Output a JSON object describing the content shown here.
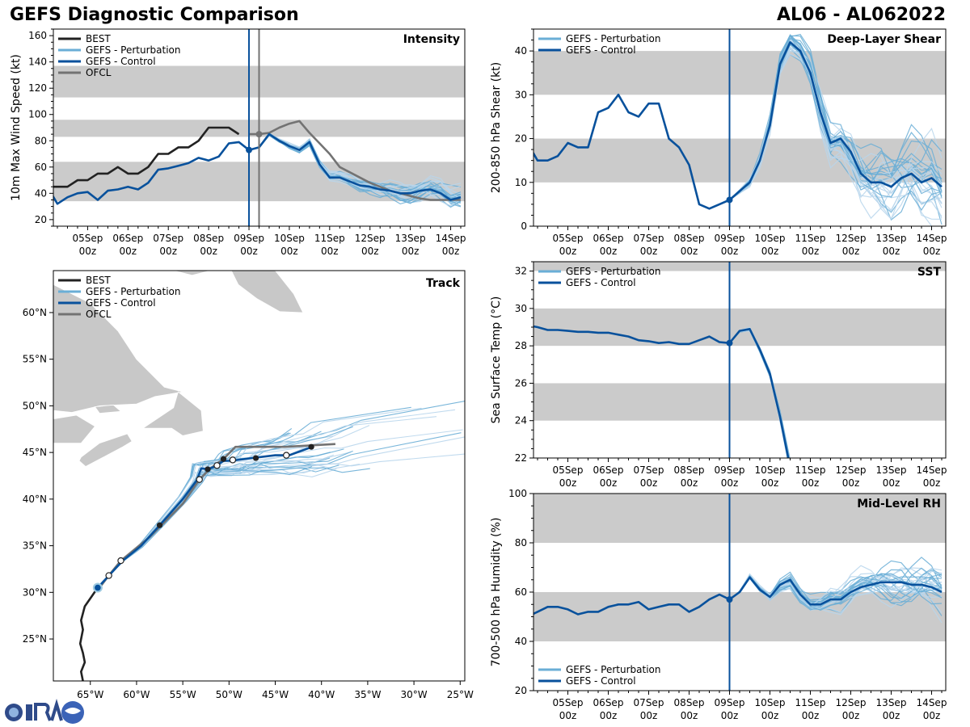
{
  "header": {
    "title": "GEFS Diagnostic Comparison",
    "storm_id": "AL06 - AL062022"
  },
  "colors": {
    "best": "#222222",
    "perturbation": "#6aaed6",
    "perturbation_light": "#b9d6ec",
    "control": "#08519c",
    "ofcl": "#737373",
    "band": "#cbcbcb",
    "land": "#c8c8c8"
  },
  "time_axis": {
    "ticks": [
      {
        "t": 1,
        "day": "05Sep",
        "hour": "00z"
      },
      {
        "t": 2,
        "day": "06Sep",
        "hour": "00z"
      },
      {
        "t": 3,
        "day": "07Sep",
        "hour": "00z"
      },
      {
        "t": 4,
        "day": "08Sep",
        "hour": "00z"
      },
      {
        "t": 5,
        "day": "09Sep",
        "hour": "00z"
      },
      {
        "t": 6,
        "day": "10Sep",
        "hour": "00z"
      },
      {
        "t": 7,
        "day": "11Sep",
        "hour": "00z"
      },
      {
        "t": 8,
        "day": "12Sep",
        "hour": "00z"
      },
      {
        "t": 9,
        "day": "13Sep",
        "hour": "00z"
      },
      {
        "t": 10,
        "day": "14Sep",
        "hour": "00z"
      }
    ],
    "range": [
      0.15,
      10.35
    ],
    "init_time": 5.0
  },
  "legend_labels": {
    "best": "BEST",
    "perturbation": "GEFS - Perturbation",
    "control": "GEFS - Control",
    "ofcl": "OFCL"
  },
  "chart_data": [
    {
      "id": "intensity",
      "type": "line",
      "title": "Intensity",
      "ylabel": "10m Max Wind Speed (kt)",
      "ylim": [
        15,
        165
      ],
      "yticks": [
        20,
        40,
        60,
        80,
        100,
        120,
        140,
        160
      ],
      "bands": [
        [
          34,
          64
        ],
        [
          83,
          96
        ],
        [
          113,
          137
        ]
      ],
      "ofcl_vline": 5.25,
      "series": [
        {
          "name": "BEST",
          "kind": "best",
          "t_start": 0,
          "dt": 0.25,
          "values": [
            45,
            45,
            45,
            50,
            50,
            55,
            55,
            60,
            55,
            55,
            60,
            70,
            70,
            75,
            75,
            80,
            90,
            90,
            90,
            85
          ]
        },
        {
          "name": "GEFS - Control",
          "kind": "control",
          "t_start": 0,
          "dt": 0.25,
          "values": [
            45,
            32,
            37,
            40,
            41,
            35,
            42,
            43,
            45,
            43,
            48,
            58,
            59,
            61,
            63,
            67,
            65,
            68,
            78,
            79,
            73,
            75,
            85,
            80,
            76,
            73,
            79,
            62,
            52,
            52,
            49,
            46,
            45,
            43,
            42,
            40,
            40,
            42,
            43,
            40,
            35,
            37
          ]
        },
        {
          "name": "OFCL",
          "kind": "ofcl",
          "t_start": 5,
          "dt": 0.25,
          "values": [
            85,
            85,
            86,
            90,
            93,
            95,
            86,
            78,
            70,
            60,
            56,
            52,
            48,
            45,
            42,
            40,
            38,
            36,
            35,
            35,
            35,
            35
          ]
        }
      ]
    },
    {
      "id": "shear",
      "type": "line",
      "title": "Deep-Layer Shear",
      "ylabel": "200-850 hPa Shear (kt)",
      "ylim": [
        0,
        45
      ],
      "yticks": [
        0,
        10,
        20,
        30,
        40
      ],
      "bands": [
        [
          10,
          20
        ],
        [
          30,
          40
        ]
      ],
      "series": [
        {
          "name": "GEFS - Control",
          "kind": "control",
          "t_start": 0,
          "dt": 0.25,
          "values": [
            19,
            15,
            15,
            16,
            19,
            18,
            18,
            26,
            27,
            30,
            26,
            25,
            28,
            28,
            20,
            18,
            14,
            5,
            4,
            5,
            6,
            8,
            10,
            15,
            23,
            37,
            42,
            40,
            35,
            26,
            19,
            20,
            17,
            12,
            10,
            10,
            9,
            11,
            12,
            10,
            11,
            9
          ]
        }
      ]
    },
    {
      "id": "sst",
      "type": "line",
      "title": "SST",
      "ylabel": "Sea Surface Temp (°C)",
      "ylim": [
        22,
        32.5
      ],
      "yticks": [
        22,
        24,
        26,
        28,
        30,
        32
      ],
      "bands": [
        [
          24,
          26
        ],
        [
          28,
          30
        ],
        [
          32,
          34
        ]
      ],
      "series": [
        {
          "name": "GEFS - Control",
          "kind": "control",
          "t_start": 0,
          "dt": 0.25,
          "values": [
            29.1,
            29.0,
            28.85,
            28.85,
            28.8,
            28.75,
            28.75,
            28.7,
            28.7,
            28.6,
            28.5,
            28.3,
            28.25,
            28.15,
            28.2,
            28.1,
            28.1,
            28.3,
            28.5,
            28.2,
            28.15,
            28.8,
            28.9,
            27.8,
            26.5,
            24.2,
            21.5
          ]
        }
      ]
    },
    {
      "id": "rh",
      "type": "line",
      "title": "Mid-Level RH",
      "ylabel": "700-500 hPa Humidity (%)",
      "ylim": [
        20,
        100
      ],
      "yticks": [
        20,
        40,
        60,
        80,
        100
      ],
      "bands": [
        [
          40,
          60
        ],
        [
          80,
          100
        ]
      ],
      "series": [
        {
          "name": "GEFS - Control",
          "kind": "control",
          "t_start": 0,
          "dt": 0.25,
          "values": [
            50,
            52,
            54,
            54,
            53,
            51,
            52,
            52,
            54,
            55,
            55,
            56,
            53,
            54,
            55,
            55,
            52,
            54,
            57,
            59,
            57,
            60,
            66,
            61,
            58,
            63,
            65,
            59,
            55,
            55,
            57,
            57,
            60,
            62,
            63,
            64,
            64,
            64,
            63,
            63,
            62,
            60
          ]
        }
      ]
    },
    {
      "id": "track",
      "type": "scatter",
      "title": "Track",
      "xlim": [
        -69,
        -24.5
      ],
      "ylim": [
        20.5,
        64.5
      ],
      "xticks": [
        {
          "v": -65,
          "label": "65°W"
        },
        {
          "v": -60,
          "label": "60°W"
        },
        {
          "v": -55,
          "label": "55°W"
        },
        {
          "v": -50,
          "label": "50°W"
        },
        {
          "v": -45,
          "label": "45°W"
        },
        {
          "v": -40,
          "label": "40°W"
        },
        {
          "v": -35,
          "label": "35°W"
        },
        {
          "v": -30,
          "label": "30°W"
        },
        {
          "v": -25,
          "label": "25°W"
        }
      ],
      "yticks": [
        {
          "v": 25,
          "label": "25°N"
        },
        {
          "v": 30,
          "label": "30°N"
        },
        {
          "v": 35,
          "label": "35°N"
        },
        {
          "v": 40,
          "label": "40°N"
        },
        {
          "v": 45,
          "label": "45°N"
        },
        {
          "v": 50,
          "label": "50°N"
        },
        {
          "v": 55,
          "label": "55°N"
        },
        {
          "v": 60,
          "label": "60°N"
        }
      ],
      "best_track": [
        [
          -65.8,
          20.5
        ],
        [
          -66.0,
          21.5
        ],
        [
          -65.6,
          22.5
        ],
        [
          -65.8,
          23.5
        ],
        [
          -66.1,
          24.5
        ],
        [
          -65.8,
          26.0
        ],
        [
          -66.0,
          27.0
        ],
        [
          -65.6,
          28.5
        ],
        [
          -64.9,
          29.5
        ],
        [
          -64.2,
          30.5
        ]
      ],
      "control_track": [
        [
          -64.2,
          30.5
        ],
        [
          -62.8,
          32.0
        ],
        [
          -61.5,
          33.4
        ],
        [
          -59.5,
          35.0
        ],
        [
          -57.5,
          37.2
        ],
        [
          -55.0,
          40.0
        ],
        [
          -53.5,
          42.0
        ],
        [
          -53.0,
          43.3
        ],
        [
          -52.3,
          43.2
        ],
        [
          -51.5,
          43.5
        ],
        [
          -50.6,
          44.1
        ],
        [
          -49.8,
          44.1
        ],
        [
          -47.5,
          44.4
        ],
        [
          -45.0,
          44.7
        ],
        [
          -43.5,
          44.7
        ],
        [
          -41.0,
          45.6
        ]
      ],
      "ofcl_track": [
        [
          -64.0,
          30.5
        ],
        [
          -63.0,
          31.8
        ],
        [
          -61.7,
          33.4
        ],
        [
          -58.5,
          36.0
        ],
        [
          -55.0,
          39.5
        ],
        [
          -53.2,
          42.1
        ],
        [
          -52.0,
          43.3
        ],
        [
          -50.6,
          44.3
        ],
        [
          -49.3,
          45.6
        ],
        [
          -44.0,
          45.6
        ],
        [
          -38.5,
          45.9
        ]
      ],
      "best_markers": [
        [
          -57.5,
          37.2
        ],
        [
          -52.3,
          43.2
        ],
        [
          -50.6,
          44.3
        ],
        [
          -47.1,
          44.4
        ],
        [
          -41.1,
          45.6
        ]
      ],
      "ofcl_markers": [
        [
          -63.0,
          31.8
        ],
        [
          -61.7,
          33.4
        ],
        [
          -53.2,
          42.1
        ],
        [
          -51.3,
          43.6
        ],
        [
          -49.6,
          44.2
        ],
        [
          -43.8,
          44.7
        ]
      ],
      "start_point": [
        -64.2,
        30.5
      ]
    }
  ]
}
